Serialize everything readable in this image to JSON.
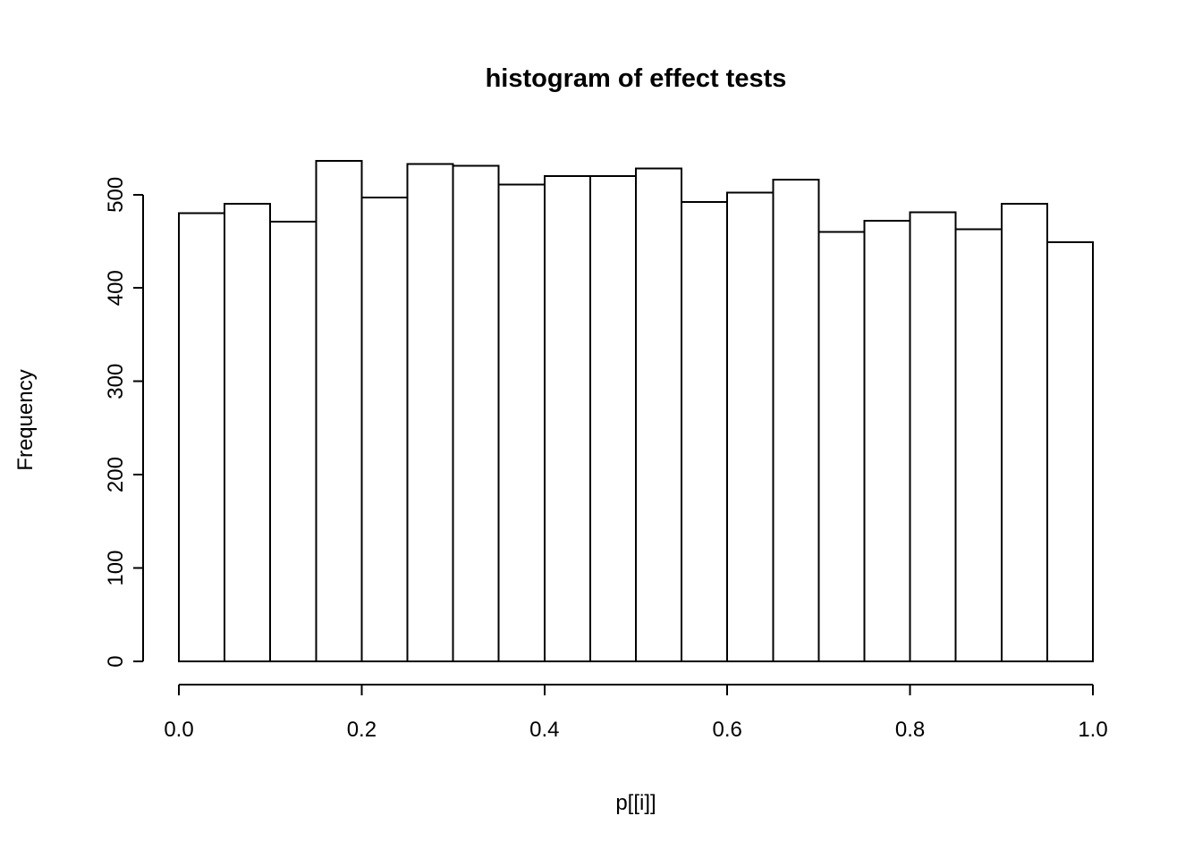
{
  "chart_data": {
    "type": "bar",
    "subtype": "histogram",
    "title": "histogram of effect tests",
    "xlabel": "p[[i]]",
    "ylabel": "Frequency",
    "bin_start": 0.0,
    "bin_width": 0.05,
    "values": [
      480,
      490,
      471,
      536,
      497,
      533,
      531,
      511,
      520,
      520,
      528,
      492,
      502,
      516,
      460,
      472,
      481,
      463,
      490,
      449
    ],
    "x_ticks": [
      0.0,
      0.2,
      0.4,
      0.6,
      0.8,
      1.0
    ],
    "x_tick_labels": [
      "0.0",
      "0.2",
      "0.4",
      "0.6",
      "0.8",
      "1.0"
    ],
    "y_ticks": [
      0,
      100,
      200,
      300,
      400,
      500
    ],
    "y_tick_labels": [
      "0",
      "100",
      "200",
      "300",
      "400",
      "500"
    ],
    "xlim": [
      0.0,
      1.0
    ],
    "ylim": [
      0,
      540
    ],
    "grid": "off",
    "legend": "none",
    "colors": {
      "bar_fill": "#ffffff",
      "bar_stroke": "#000000",
      "axis": "#000000",
      "text": "#000000",
      "background": "#ffffff"
    }
  }
}
